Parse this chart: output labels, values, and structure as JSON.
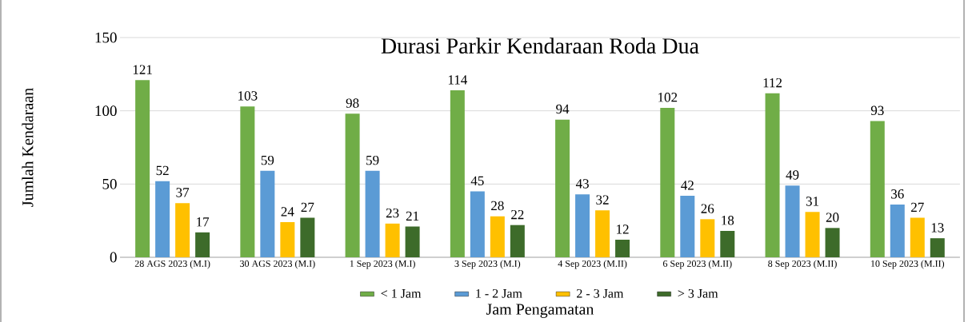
{
  "chart_data": {
    "type": "bar",
    "title": "Durasi Parkir Kendaraan Roda Dua",
    "xlabel": "Jam Pengamatan",
    "ylabel": "Jumlah Kendaraan",
    "categories": [
      "28 AGS 2023 (M.I)",
      "30 AGS 2023 (M.I)",
      "1 Sep 2023 (M.I)",
      "3 Sep 2023 (M.I)",
      "4 Sep 2023 (M.II)",
      "6 Sep 2023 (M.II)",
      "8 Sep 2023 (M.II)",
      "10 Sep 2023 (M.II)"
    ],
    "series": [
      {
        "name": "< 1 Jam",
        "color": "#70ad47",
        "values": [
          121,
          103,
          98,
          114,
          94,
          102,
          112,
          93
        ]
      },
      {
        "name": "1 - 2 Jam",
        "color": "#5b9bd5",
        "values": [
          52,
          59,
          59,
          45,
          43,
          42,
          49,
          36
        ]
      },
      {
        "name": "2 - 3 Jam",
        "color": "#ffc000",
        "values": [
          37,
          24,
          23,
          28,
          32,
          26,
          31,
          27
        ]
      },
      {
        "name": "> 3 Jam",
        "color": "#3d6b2a",
        "values": [
          17,
          27,
          21,
          22,
          12,
          18,
          20,
          13
        ]
      }
    ],
    "ylim": [
      0,
      150
    ],
    "yticks": [
      0,
      50,
      100,
      150
    ],
    "grid": "y",
    "legend": "bottom",
    "data_labels": true
  }
}
